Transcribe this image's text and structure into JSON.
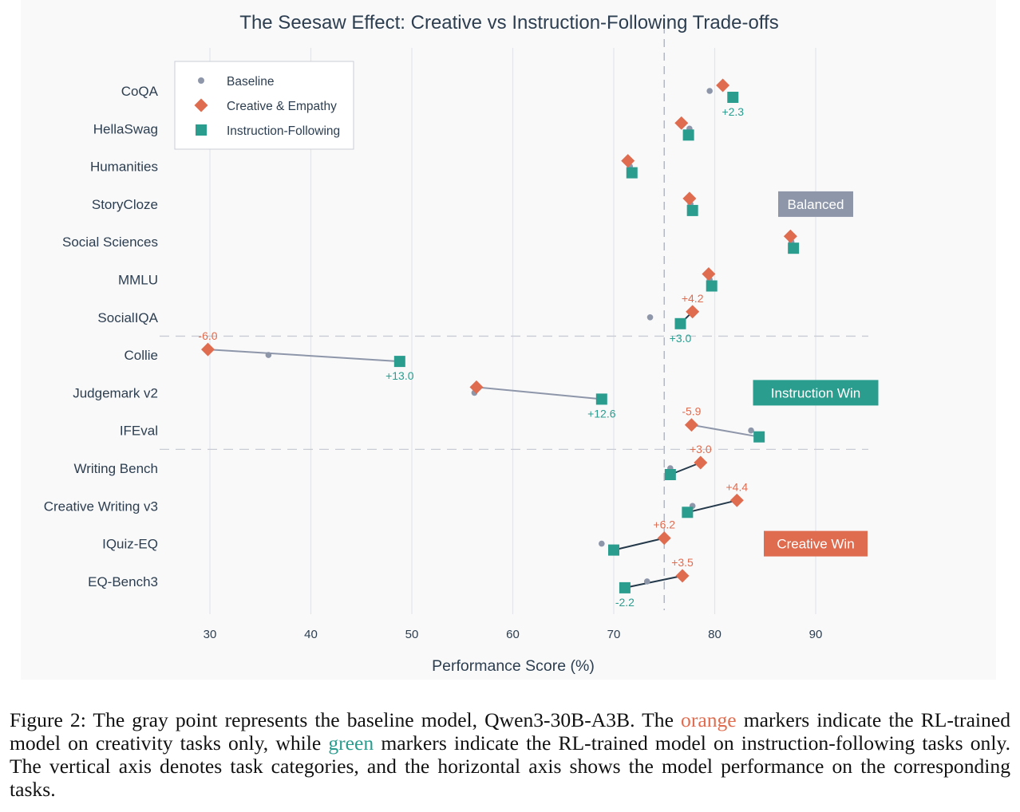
{
  "chart_data": {
    "type": "dumbbell",
    "title": "The Seesaw Effect: Creative vs Instruction-Following Trade-offs",
    "xlabel": "Performance Score (%)",
    "ylabel": "",
    "xlim": [
      25,
      95
    ],
    "xticks": [
      30,
      40,
      50,
      60,
      70,
      80,
      90
    ],
    "reference_line_x": 75,
    "grid": "vertical",
    "legend": {
      "position": "top-left",
      "entries": [
        "Baseline",
        "Creative & Empathy",
        "Instruction-Following"
      ]
    },
    "colors": {
      "baseline": "#8e97aa",
      "creative": "#e06c4f",
      "instruction": "#2a9d8f",
      "dark_connector": "#24394a",
      "gray_connector": "#8e97aa",
      "plot_bg": "#f9f9fa",
      "text": "#2c3e50"
    },
    "tasks": [
      {
        "name": "CoQA",
        "group": "Balanced",
        "baseline": 79.5,
        "creative": 80.8,
        "instruction": 81.8,
        "creative_label": "",
        "instruction_label": "+2.3",
        "connector": "none"
      },
      {
        "name": "HellaSwag",
        "group": "Balanced",
        "baseline": 77.5,
        "creative": 76.7,
        "instruction": 77.4,
        "creative_label": "",
        "instruction_label": "",
        "connector": "none"
      },
      {
        "name": "Humanities",
        "group": "Balanced",
        "baseline": 71.6,
        "creative": 71.4,
        "instruction": 71.8,
        "creative_label": "",
        "instruction_label": "",
        "connector": "none"
      },
      {
        "name": "StoryCloze",
        "group": "Balanced",
        "baseline": 77.6,
        "creative": 77.5,
        "instruction": 77.8,
        "creative_label": "",
        "instruction_label": "",
        "connector": "none"
      },
      {
        "name": "Social Sciences",
        "group": "Balanced",
        "baseline": 87.6,
        "creative": 87.5,
        "instruction": 87.8,
        "creative_label": "",
        "instruction_label": "",
        "connector": "none"
      },
      {
        "name": "MMLU",
        "group": "Balanced",
        "baseline": 79.5,
        "creative": 79.4,
        "instruction": 79.7,
        "creative_label": "",
        "instruction_label": "",
        "connector": "none"
      },
      {
        "name": "SocialIQA",
        "group": "Balanced",
        "baseline": 73.6,
        "creative": 77.8,
        "instruction": 76.6,
        "creative_label": "+4.2",
        "instruction_label": "+3.0",
        "connector": "dark"
      },
      {
        "name": "Collie",
        "group": "Instruction Win",
        "baseline": 35.8,
        "creative": 29.8,
        "instruction": 48.8,
        "creative_label": "-6.0",
        "instruction_label": "+13.0",
        "connector": "gray"
      },
      {
        "name": "Judgemark v2",
        "group": "Instruction Win",
        "baseline": 56.2,
        "creative": 56.4,
        "instruction": 68.8,
        "creative_label": "",
        "instruction_label": "+12.6",
        "connector": "gray"
      },
      {
        "name": "IFEval",
        "group": "Instruction Win",
        "baseline": 83.6,
        "creative": 77.7,
        "instruction": 84.4,
        "creative_label": "-5.9",
        "instruction_label": "",
        "connector": "gray"
      },
      {
        "name": "Writing Bench",
        "group": "Creative Win",
        "baseline": 75.6,
        "creative": 78.6,
        "instruction": 75.6,
        "creative_label": "+3.0",
        "instruction_label": "",
        "connector": "dark"
      },
      {
        "name": "Creative Writing v3",
        "group": "Creative Win",
        "baseline": 77.8,
        "creative": 82.2,
        "instruction": 77.3,
        "creative_label": "+4.4",
        "instruction_label": "",
        "connector": "dark"
      },
      {
        "name": "IQuiz-EQ",
        "group": "Creative Win",
        "baseline": 68.8,
        "creative": 75.0,
        "instruction": 70.0,
        "creative_label": "+6.2",
        "instruction_label": "",
        "connector": "dark"
      },
      {
        "name": "EQ-Bench3",
        "group": "Creative Win",
        "baseline": 73.3,
        "creative": 76.8,
        "instruction": 71.1,
        "creative_label": "+3.5",
        "instruction_label": "-2.2",
        "connector": "dark"
      }
    ],
    "group_dividers_after": [
      "SocialIQA",
      "IFEval"
    ],
    "group_badges": [
      {
        "label": "Balanced",
        "color": "#8e97aa",
        "anchor_task": "StoryCloze"
      },
      {
        "label": "Instruction Win",
        "color": "#2a9d8f",
        "anchor_task": "Judgemark v2"
      },
      {
        "label": "Creative Win",
        "color": "#e06c4f",
        "anchor_task": "IQuiz-EQ"
      }
    ]
  },
  "caption": {
    "part1": "Figure 2: The gray point represents the baseline model, Qwen3-30B-A3B. The ",
    "orange_word": "orange",
    "part2": " markers indicate the RL-trained model on creativity tasks only, while ",
    "green_word": "green",
    "part3": " markers indicate the RL-trained model on instruction-following tasks only. The vertical axis denotes task categories, and the horizontal axis shows the model performance on the corresponding tasks."
  }
}
